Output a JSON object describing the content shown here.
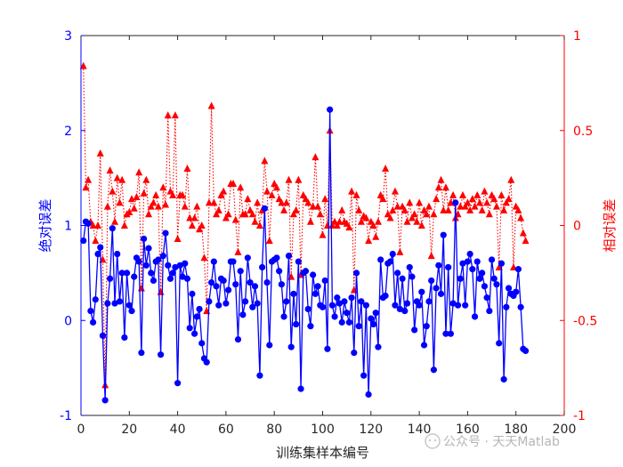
{
  "chart_data": {
    "type": "line",
    "xlabel": "训练集样本编号",
    "xlim": [
      0,
      200
    ],
    "xticks": [
      "0",
      "20",
      "40",
      "60",
      "80",
      "100",
      "120",
      "140",
      "160",
      "180",
      "200"
    ],
    "y_left": {
      "label": "绝对误差",
      "lim": [
        -1,
        3
      ],
      "ticks": [
        "-1",
        "0",
        "1",
        "2",
        "3"
      ],
      "color": "#0000ff"
    },
    "y_right": {
      "label": "相对误差",
      "lim": [
        -1,
        1
      ],
      "ticks": [
        "-1",
        "-0.5",
        "0",
        "0.5",
        "1"
      ],
      "color": "#ff0000"
    },
    "grid": false,
    "series": [
      {
        "axis": "left",
        "style": "solid line, filled circle markers",
        "color": "#0000ff",
        "values": [
          0.84,
          1.04,
          1.02,
          0.1,
          -0.02,
          0.22,
          0.7,
          0.77,
          -0.16,
          -0.84,
          0.18,
          0.44,
          0.97,
          0.18,
          0.7,
          0.2,
          0.5,
          -0.18,
          0.5,
          0.16,
          0.1,
          0.46,
          0.66,
          0.62,
          -0.34,
          0.86,
          0.58,
          0.76,
          0.5,
          0.42,
          0.62,
          0.64,
          -0.36,
          0.68,
          0.92,
          0.58,
          0.44,
          0.5,
          0.56,
          -0.66,
          0.58,
          0.46,
          0.6,
          0.44,
          -0.08,
          0.28,
          -0.14,
          0.04,
          0.12,
          -0.24,
          -0.4,
          -0.44,
          0.2,
          0.4,
          0.62,
          0.36,
          0.16,
          0.44,
          0.42,
          0.18,
          0.32,
          0.62,
          0.62,
          0.38,
          -0.2,
          0.52,
          0.06,
          0.2,
          0.66,
          0.4,
          0.14,
          0.36,
          0.18,
          -0.58,
          0.56,
          1.18,
          0.4,
          -0.26,
          0.62,
          0.64,
          0.66,
          0.52,
          0.38,
          0.04,
          0.2,
          0.68,
          -0.28,
          0.28,
          -0.04,
          0.62,
          -0.72,
          0.5,
          0.52,
          0.12,
          -0.06,
          0.48,
          0.28,
          0.36,
          0.16,
          0.14,
          0.42,
          -0.3,
          2.22,
          0.16,
          0.04,
          0.24,
          0.18,
          -0.02,
          0.2,
          0.08,
          -0.02,
          0.24,
          -0.34,
          0.5,
          -0.06,
          0.2,
          -0.58,
          0.16,
          -0.78,
          0.02,
          -0.04,
          0.08,
          -0.28,
          0.64,
          0.24,
          0.26,
          0.6,
          0.62,
          0.7,
          0.16,
          0.5,
          0.12,
          0.44,
          0.1,
          0.18,
          0.56,
          0.46,
          -0.1,
          0.2,
          0.16,
          0.3,
          -0.26,
          -0.06,
          0.2,
          0.42,
          -0.52,
          0.34,
          0.58,
          0.28,
          0.9,
          -0.14,
          0.56,
          -0.14,
          0.18,
          1.24,
          0.16,
          0.44,
          0.6,
          0.16,
          0.62,
          0.7,
          0.54,
          0.04,
          0.62,
          0.44,
          0.5,
          0.36,
          0.24,
          0.1,
          0.64,
          0.44,
          0.38,
          -0.24,
          0.6,
          -0.62,
          0.14,
          0.34,
          0.28,
          0.26,
          0.3,
          0.54,
          0.14,
          -0.3,
          -0.32
        ]
      },
      {
        "axis": "right",
        "style": "dotted line, filled triangle markers",
        "color": "#ff0000",
        "values": [
          0.84,
          0.2,
          0.24,
          0.02,
          0.0,
          -0.08,
          0.0,
          0.38,
          -0.18,
          -0.84,
          0.1,
          0.29,
          0.18,
          0.02,
          0.25,
          0.12,
          0.24,
          0.0,
          0.06,
          0.07,
          0.14,
          0.09,
          0.15,
          0.28,
          -0.33,
          0.17,
          0.24,
          0.06,
          0.1,
          0.12,
          0.16,
          0.1,
          -0.35,
          0.2,
          0.11,
          0.58,
          0.18,
          0.16,
          0.58,
          -0.07,
          0.16,
          0.16,
          0.1,
          0.3,
          0.04,
          0.0,
          0.04,
          0.1,
          -0.02,
          0.0,
          -0.17,
          -0.45,
          0.12,
          0.63,
          0.12,
          0.06,
          0.08,
          0.16,
          0.18,
          0.04,
          0.06,
          0.22,
          0.22,
          0.03,
          -0.14,
          0.2,
          0.06,
          0.06,
          0.14,
          0.08,
          0.06,
          0.02,
          0.12,
          0.0,
          0.08,
          0.34,
          0.18,
          -0.08,
          0.16,
          0.22,
          0.2,
          0.14,
          0.12,
          0.08,
          0.12,
          0.24,
          -0.27,
          0.06,
          0.08,
          0.24,
          -0.26,
          0.16,
          0.14,
          0.12,
          0.02,
          0.1,
          0.36,
          0.1,
          0.06,
          -0.05,
          0.14,
          0.0,
          0.5,
          0.0,
          0.02,
          0.0,
          0.02,
          0.08,
          0.02,
          0.01,
          -0.01,
          0.18,
          -0.34,
          0.16,
          0.08,
          0.02,
          0.05,
          0.04,
          -0.08,
          0.02,
          0.0,
          -0.06,
          0.02,
          0.16,
          0.14,
          0.3,
          0.06,
          0.04,
          0.08,
          0.18,
          0.1,
          -0.14,
          0.1,
          0.08,
          0.02,
          0.12,
          0.04,
          0.06,
          0.02,
          0.12,
          0.0,
          0.08,
          0.06,
          0.1,
          -0.16,
          0.06,
          0.14,
          0.2,
          0.24,
          0.08,
          0.2,
          0.08,
          0.12,
          0.16,
          0.04,
          0.06,
          0.1,
          0.16,
          0.1,
          0.12,
          0.08,
          0.14,
          0.1,
          0.16,
          0.12,
          0.08,
          0.18,
          0.12,
          0.06,
          0.16,
          0.14,
          0.1,
          -0.22,
          0.16,
          0.08,
          0.12,
          0.14,
          0.24,
          -0.22,
          0.1,
          0.08,
          0.04,
          -0.04,
          -0.08
        ]
      }
    ]
  },
  "watermark": "公众号 · 天天Matlab"
}
